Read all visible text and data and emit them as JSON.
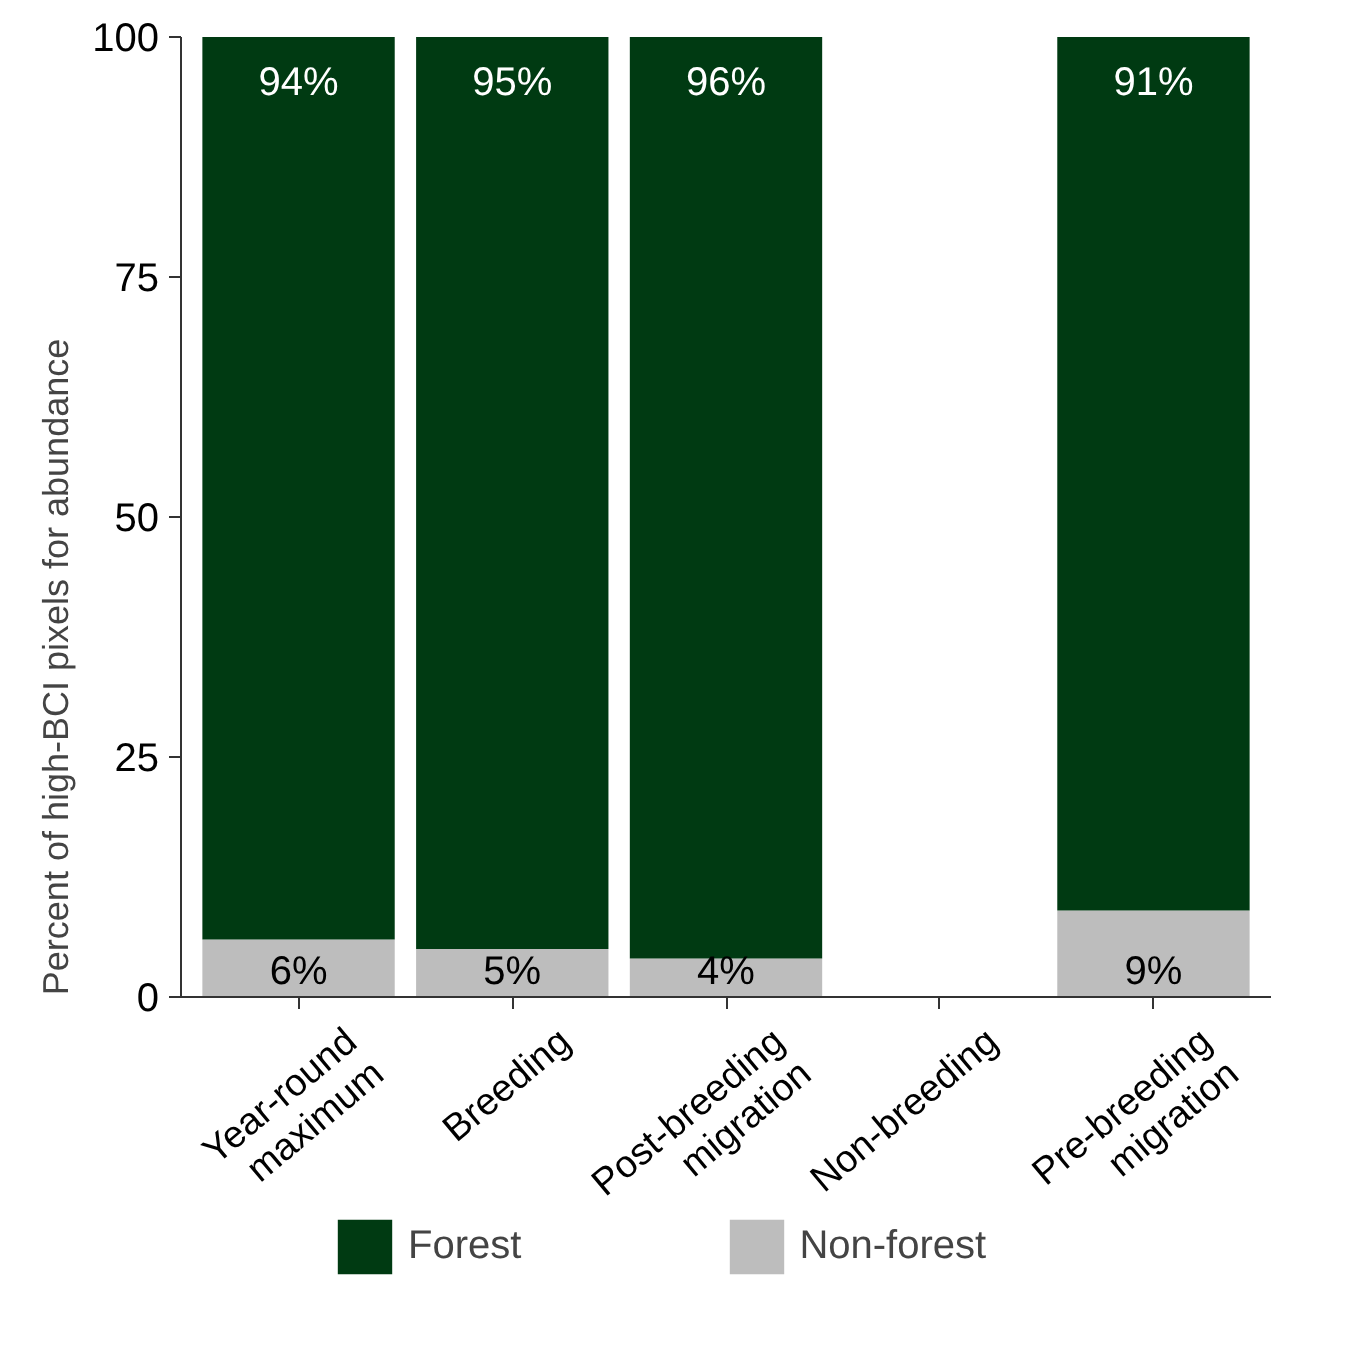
{
  "chart_data": {
    "type": "bar",
    "stacked": true,
    "ylabel": "Percent of high-BCI pixels for abundance",
    "categories": [
      "Year-round\nmaximum",
      "Breeding",
      "Post-breeding\nmigration",
      "Non-breeding",
      "Pre-breeding\nmigration"
    ],
    "series": [
      {
        "name": "Non-forest",
        "color": "#bdbdbd",
        "values": [
          6,
          5,
          4,
          null,
          9
        ],
        "value_labels": [
          "6%",
          "5%",
          "4%",
          null,
          "9%"
        ]
      },
      {
        "name": "Forest",
        "color": "#003a12",
        "values": [
          94,
          95,
          96,
          null,
          91
        ],
        "value_labels": [
          "94%",
          "95%",
          "96%",
          null,
          "91%"
        ]
      }
    ],
    "ylim": [
      0,
      100
    ],
    "yticks": [
      0,
      25,
      50,
      75,
      100
    ],
    "data_labels": true,
    "legend": "bottom",
    "grid": false
  }
}
